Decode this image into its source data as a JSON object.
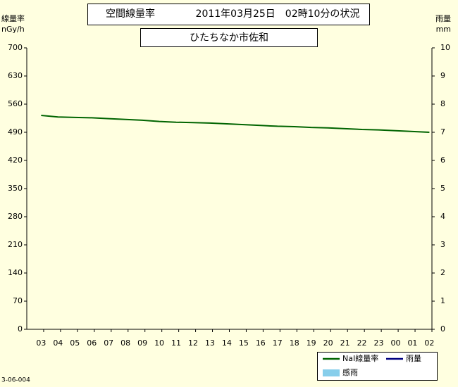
{
  "chart_data": {
    "type": "line",
    "title": "空間線量率",
    "date": "2011年03月25日　02時10分の状況",
    "location": "ひたちなか市佐和",
    "ylabel": "線量率",
    "yunit": "nGy/h",
    "y2label": "雨量",
    "y2unit": "mm",
    "categories": [
      "03",
      "04",
      "05",
      "06",
      "07",
      "08",
      "09",
      "10",
      "11",
      "12",
      "13",
      "14",
      "15",
      "16",
      "17",
      "18",
      "19",
      "20",
      "21",
      "22",
      "23",
      "00",
      "01",
      "02"
    ],
    "series": [
      {
        "name": "NaI線量率",
        "color": "#006400",
        "values": [
          532,
          528,
          527,
          526,
          524,
          522,
          520,
          517,
          515,
          514,
          513,
          511,
          509,
          507,
          505,
          504,
          502,
          501,
          499,
          497,
          496,
          494,
          492,
          490
        ]
      },
      {
        "name": "雨量",
        "color": "#000080",
        "axis": "y2",
        "values": [
          null,
          null,
          null,
          null,
          null,
          null,
          null,
          null,
          null,
          null,
          null,
          null,
          null,
          null,
          null,
          null,
          null,
          null,
          null,
          null,
          null,
          null,
          null,
          null
        ]
      },
      {
        "name": "感雨",
        "color": "#87ceeb",
        "axis": "y2",
        "values": [
          null,
          null,
          null,
          null,
          null,
          null,
          null,
          null,
          null,
          null,
          null,
          null,
          null,
          null,
          null,
          null,
          null,
          null,
          null,
          null,
          null,
          null,
          null,
          null
        ]
      }
    ],
    "ylim": [
      0,
      700
    ],
    "yticks": [
      0,
      70,
      140,
      210,
      280,
      350,
      420,
      490,
      560,
      630,
      700
    ],
    "y2lim": [
      0,
      10
    ],
    "y2ticks": [
      0,
      1,
      2,
      3,
      4,
      5,
      6,
      7,
      8,
      9,
      10
    ],
    "grid": false,
    "footer": "3-06-004"
  }
}
